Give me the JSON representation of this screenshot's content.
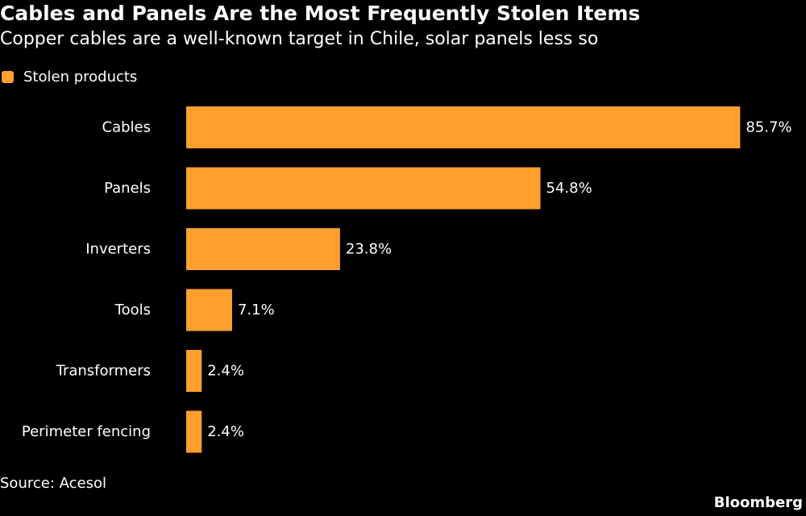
{
  "header": {
    "title": "Cables and Panels Are the Most Frequently Stolen Items",
    "subtitle": "Copper cables are a well-known target in Chile, solar panels less so"
  },
  "legend": {
    "label": "Stolen products",
    "color": "#FFA02E"
  },
  "footer": {
    "source": "Source: Acesol",
    "brand": "Bloomberg"
  },
  "chart_data": {
    "type": "bar",
    "orientation": "horizontal",
    "categories": [
      "Cables",
      "Panels",
      "Inverters",
      "Tools",
      "Transformers",
      "Perimeter fencing"
    ],
    "series": [
      {
        "name": "Stolen products",
        "values": [
          85.7,
          54.8,
          23.8,
          7.1,
          2.4,
          2.4
        ],
        "labels": [
          "85.7%",
          "54.8%",
          "23.8%",
          "7.1%",
          "2.4%",
          "2.4%"
        ],
        "color": "#FFA02E"
      }
    ],
    "title": "Cables and Panels Are the Most Frequently Stolen Items",
    "subtitle": "Copper cables are a well-known target in Chile, solar panels less so",
    "xlabel": "",
    "ylabel": "",
    "xlim": [
      0,
      100
    ],
    "unit": "%",
    "grid": false,
    "legend_position": "top-left",
    "background": "#000000"
  }
}
